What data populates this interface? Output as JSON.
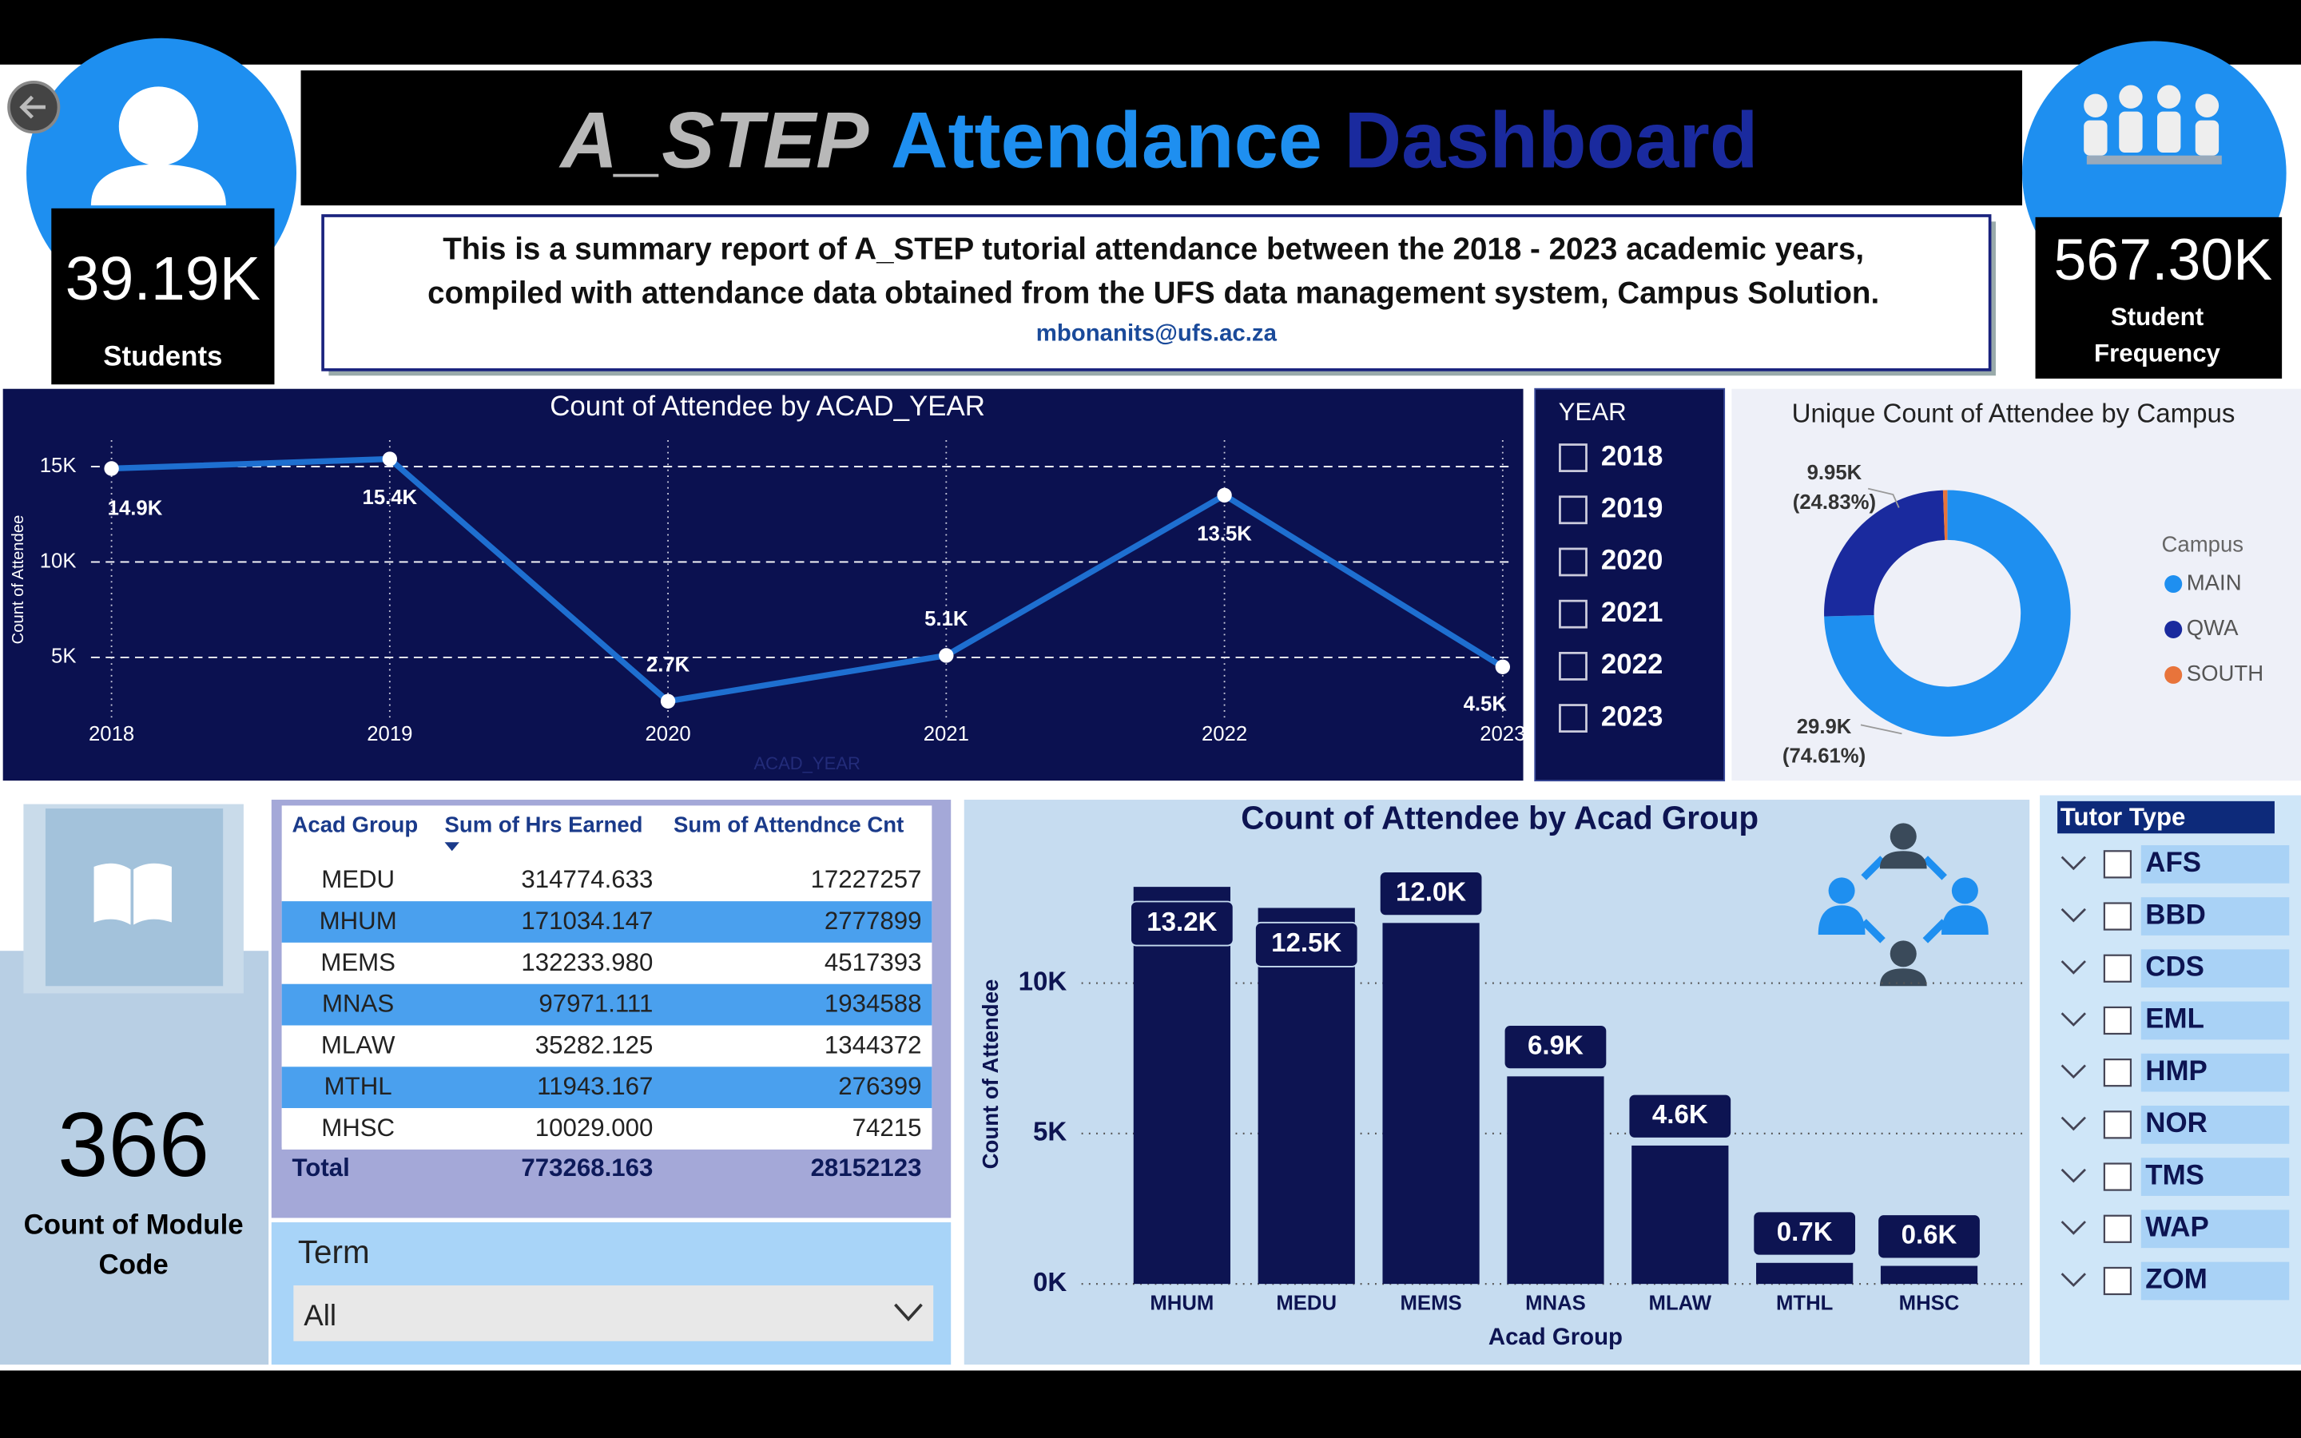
{
  "header": {
    "title": [
      "A_STEP",
      "Attendance",
      "Dashboard"
    ],
    "summary": [
      "This is a summary report of A_STEP tutorial attendance between the 2018 - 2023 academic years,",
      "compiled with attendance data obtained from the UFS data management system, Campus Solution."
    ],
    "email": "mbonanits@ufs.ac.za"
  },
  "kpis": [
    {
      "value": "39.19K",
      "label": [
        "Students"
      ]
    },
    {
      "value": "567.30K",
      "label": [
        "Student",
        "Frequency"
      ]
    },
    {
      "value": "366",
      "label": [
        "Count of Module",
        "Code"
      ]
    }
  ],
  "chart_data": [
    {
      "type": "line",
      "title": "Count of Attendee by ACAD_YEAR",
      "x_label": "ACAD_YEAR",
      "y_label": "Count of Attendee",
      "categories": [
        "2018",
        "2019",
        "2020",
        "2021",
        "2022",
        "2023"
      ],
      "values": [
        14900,
        15400,
        2700,
        5100,
        13500,
        4500
      ],
      "value_labels": [
        "14.9K",
        "15.4K",
        "2.7K",
        "5.1K",
        "13.5K",
        "4.5K"
      ],
      "color": "#1e6fd0",
      "ylim": [
        2000,
        16500
      ],
      "yticks": [
        {
          "value": 5000,
          "label": "5K"
        },
        {
          "value": 10000,
          "label": "10K"
        },
        {
          "value": 15000,
          "label": "15K"
        }
      ],
      "grid": true
    },
    {
      "type": "pie",
      "title": "Unique Count of Attendee by Campus",
      "legend_title": "Campus",
      "donut": true,
      "categories": [
        "MAIN",
        "QWA",
        "SOUTH"
      ],
      "values": [
        29900,
        9950,
        225
      ],
      "value_labels": [
        "29.9K",
        "9.95K",
        null
      ],
      "percent_labels": [
        "(74.61%)",
        "(24.83%)",
        null
      ],
      "colors": [
        "#1e8ff0",
        "#1a2a9e",
        "#e8743b"
      ]
    },
    {
      "type": "bar",
      "title": "Count of Attendee by Acad Group",
      "x_label": "Acad Group",
      "y_label": "Count of Attendee",
      "categories": [
        "MHUM",
        "MEDU",
        "MEMS",
        "MNAS",
        "MLAW",
        "MTHL",
        "MHSC"
      ],
      "values": [
        13200,
        12500,
        12000,
        6900,
        4600,
        700,
        600
      ],
      "value_labels": [
        "13.2K",
        "12.5K",
        "12.0K",
        "6.9K",
        "4.6K",
        "0.7K",
        "0.6K"
      ],
      "color": "#0d1452",
      "ylim": [
        0,
        13400
      ],
      "yticks": [
        {
          "value": 0,
          "label": "0K"
        },
        {
          "value": 5000,
          "label": "5K"
        },
        {
          "value": 10000,
          "label": "10K"
        }
      ],
      "grid": true
    }
  ],
  "slicers": {
    "year": {
      "title": "YEAR",
      "items": [
        "2018",
        "2019",
        "2020",
        "2021",
        "2022",
        "2023"
      ]
    },
    "term": {
      "title": "Term",
      "value": "All"
    },
    "tutor_type": {
      "title": "Tutor Type",
      "items": [
        "AFS",
        "BBD",
        "CDS",
        "EML",
        "HMP",
        "NOR",
        "TMS",
        "WAP",
        "ZOM"
      ]
    }
  },
  "table": {
    "columns": [
      "Acad Group",
      "Sum of Hrs Earned",
      "Sum of Attendnce Cnt"
    ],
    "rows": [
      [
        "MEDU",
        "314774.633",
        "17227257"
      ],
      [
        "MHUM",
        "171034.147",
        "2777899"
      ],
      [
        "MEMS",
        "132233.980",
        "4517393"
      ],
      [
        "MNAS",
        "97971.111",
        "1934588"
      ],
      [
        "MLAW",
        "35282.125",
        "1344372"
      ],
      [
        "MTHL",
        "11943.167",
        "276399"
      ],
      [
        "MHSC",
        "10029.000",
        "74215"
      ]
    ],
    "total": [
      "Total",
      "773268.163",
      "28152123"
    ]
  }
}
